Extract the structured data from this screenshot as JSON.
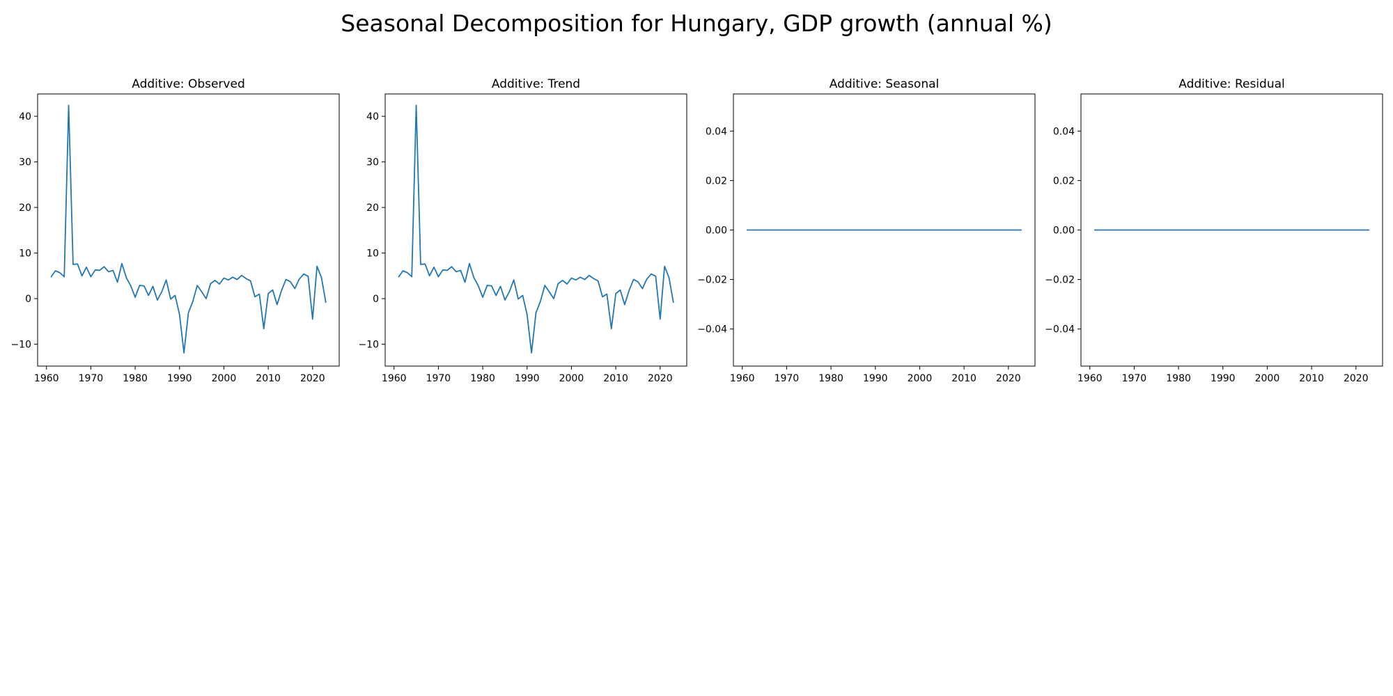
{
  "title": "Seasonal Decomposition for Hungary, GDP growth (annual %)",
  "colors": {
    "line": "#1f77b4",
    "axes": "#000000",
    "background": "#ffffff"
  },
  "chart_data": [
    {
      "type": "line",
      "title": "Additive: Observed",
      "xlim": [
        1958,
        2026
      ],
      "ylim": [
        -14.8,
        44.9
      ],
      "xticks": [
        1960,
        1970,
        1980,
        1990,
        2000,
        2010,
        2020
      ],
      "yticks": [
        -10,
        0,
        10,
        20,
        30,
        40
      ],
      "ytick_labels": [
        "−10",
        "0",
        "10",
        "20",
        "30",
        "40"
      ],
      "grid": false,
      "series": [
        {
          "x": [
            1961,
            1962,
            1963,
            1964,
            1965,
            1966,
            1967,
            1968,
            1969,
            1970,
            1971,
            1972,
            1973,
            1974,
            1975,
            1976,
            1977,
            1978,
            1979,
            1980,
            1981,
            1982,
            1983,
            1984,
            1985,
            1986,
            1987,
            1988,
            1989,
            1990,
            1991,
            1992,
            1993,
            1994,
            1995,
            1996,
            1997,
            1998,
            1999,
            2000,
            2001,
            2002,
            2003,
            2004,
            2005,
            2006,
            2007,
            2008,
            2009,
            2010,
            2011,
            2012,
            2013,
            2014,
            2015,
            2016,
            2017,
            2018,
            2019,
            2020,
            2021,
            2022,
            2023
          ],
          "y": [
            4.7,
            6.1,
            5.7,
            4.8,
            42.4,
            7.5,
            7.6,
            5.0,
            6.9,
            4.8,
            6.3,
            6.2,
            7.0,
            5.9,
            6.2,
            3.6,
            7.7,
            4.6,
            2.8,
            0.3,
            2.9,
            2.8,
            0.7,
            2.7,
            -0.3,
            1.5,
            4.1,
            -0.1,
            0.7,
            -3.5,
            -11.9,
            -3.1,
            -0.6,
            2.9,
            1.5,
            0.0,
            3.3,
            4.0,
            3.2,
            4.5,
            4.1,
            4.7,
            4.2,
            5.1,
            4.4,
            3.9,
            0.4,
            1.0,
            -6.6,
            1.1,
            1.9,
            -1.3,
            1.8,
            4.2,
            3.7,
            2.2,
            4.3,
            5.4,
            4.9,
            -4.5,
            7.1,
            4.6,
            -0.9
          ]
        }
      ]
    },
    {
      "type": "line",
      "title": "Additive: Trend",
      "xlim": [
        1958,
        2026
      ],
      "ylim": [
        -14.8,
        44.9
      ],
      "xticks": [
        1960,
        1970,
        1980,
        1990,
        2000,
        2010,
        2020
      ],
      "yticks": [
        -10,
        0,
        10,
        20,
        30,
        40
      ],
      "ytick_labels": [
        "−10",
        "0",
        "10",
        "20",
        "30",
        "40"
      ],
      "grid": false,
      "series": [
        {
          "x": [
            1961,
            1962,
            1963,
            1964,
            1965,
            1966,
            1967,
            1968,
            1969,
            1970,
            1971,
            1972,
            1973,
            1974,
            1975,
            1976,
            1977,
            1978,
            1979,
            1980,
            1981,
            1982,
            1983,
            1984,
            1985,
            1986,
            1987,
            1988,
            1989,
            1990,
            1991,
            1992,
            1993,
            1994,
            1995,
            1996,
            1997,
            1998,
            1999,
            2000,
            2001,
            2002,
            2003,
            2004,
            2005,
            2006,
            2007,
            2008,
            2009,
            2010,
            2011,
            2012,
            2013,
            2014,
            2015,
            2016,
            2017,
            2018,
            2019,
            2020,
            2021,
            2022,
            2023
          ],
          "y": [
            4.7,
            6.1,
            5.7,
            4.8,
            42.4,
            7.5,
            7.6,
            5.0,
            6.9,
            4.8,
            6.3,
            6.2,
            7.0,
            5.9,
            6.2,
            3.6,
            7.7,
            4.6,
            2.8,
            0.3,
            2.9,
            2.8,
            0.7,
            2.7,
            -0.3,
            1.5,
            4.1,
            -0.1,
            0.7,
            -3.5,
            -11.9,
            -3.1,
            -0.6,
            2.9,
            1.5,
            0.0,
            3.3,
            4.0,
            3.2,
            4.5,
            4.1,
            4.7,
            4.2,
            5.1,
            4.4,
            3.9,
            0.4,
            1.0,
            -6.6,
            1.1,
            1.9,
            -1.3,
            1.8,
            4.2,
            3.7,
            2.2,
            4.3,
            5.4,
            4.9,
            -4.5,
            7.1,
            4.6,
            -0.9
          ]
        }
      ]
    },
    {
      "type": "line",
      "title": "Additive: Seasonal",
      "xlim": [
        1958,
        2026
      ],
      "ylim": [
        -0.055,
        0.055
      ],
      "xticks": [
        1960,
        1970,
        1980,
        1990,
        2000,
        2010,
        2020
      ],
      "yticks": [
        -0.04,
        -0.02,
        0.0,
        0.02,
        0.04
      ],
      "ytick_labels": [
        "−0.04",
        "−0.02",
        "0.00",
        "0.02",
        "0.04"
      ],
      "grid": false,
      "series": [
        {
          "x": [
            1961,
            2023
          ],
          "y": [
            0,
            0
          ]
        }
      ]
    },
    {
      "type": "line",
      "title": "Additive: Residual",
      "xlim": [
        1958,
        2026
      ],
      "ylim": [
        -0.055,
        0.055
      ],
      "xticks": [
        1960,
        1970,
        1980,
        1990,
        2000,
        2010,
        2020
      ],
      "yticks": [
        -0.04,
        -0.02,
        0.0,
        0.02,
        0.04
      ],
      "ytick_labels": [
        "−0.04",
        "−0.02",
        "0.00",
        "0.02",
        "0.04"
      ],
      "grid": false,
      "series": [
        {
          "x": [
            1961,
            2023
          ],
          "y": [
            0,
            0
          ]
        }
      ]
    }
  ]
}
